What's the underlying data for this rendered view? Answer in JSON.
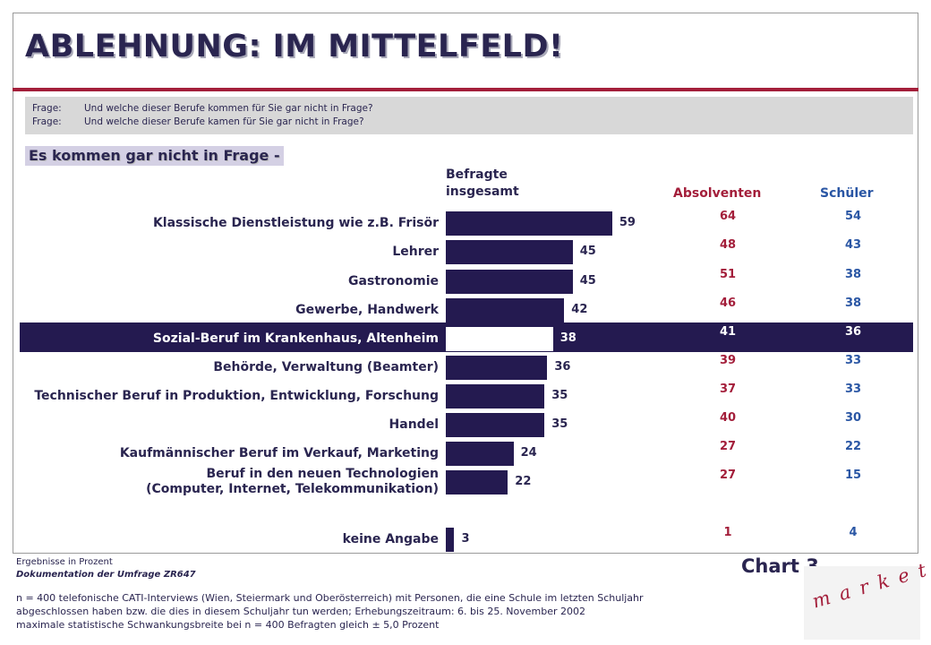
{
  "title": "ABLEHNUNG: IM MITTELFELD!",
  "questions": [
    {
      "label": "Frage:",
      "text": "Und welche dieser Berufe kommen für Sie gar nicht in Frage?"
    },
    {
      "label": "Frage:",
      "text": "Und welche dieser Berufe kamen für Sie gar nicht in Frage?"
    }
  ],
  "subheading": "Es kommen gar nicht in Frage -",
  "columns": {
    "total_line1": "Befragte",
    "total_line2": "insgesamt",
    "absolventen": "Absolventen",
    "schueler": "Schüler"
  },
  "chart_data": {
    "type": "bar",
    "orientation": "horizontal",
    "title": "Es kommen gar nicht in Frage -",
    "categories": [
      "Klassische Dienstleistung wie z.B. Frisör",
      "Lehrer",
      "Gastronomie",
      "Gewerbe, Handwerk",
      "Sozial-Beruf im Krankenhaus, Altenheim",
      "Behörde, Verwaltung (Beamter)",
      "Technischer Beruf in Produktion, Entwicklung, Forschung",
      "Handel",
      "Kaufmännischer Beruf im Verkauf, Marketing",
      "Beruf in den neuen Technologien\n(Computer, Internet, Telekommunikation)",
      "keine Angabe"
    ],
    "series": [
      {
        "name": "Befragte insgesamt",
        "values": [
          59,
          45,
          45,
          42,
          38,
          36,
          35,
          35,
          24,
          22,
          3
        ]
      },
      {
        "name": "Absolventen",
        "values": [
          64,
          48,
          51,
          46,
          41,
          39,
          37,
          40,
          27,
          27,
          1
        ]
      },
      {
        "name": "Schüler",
        "values": [
          54,
          43,
          38,
          38,
          36,
          33,
          33,
          30,
          22,
          15,
          4
        ]
      }
    ],
    "highlight_index": 4,
    "unit": "Prozent",
    "colors": {
      "bar": "#241a50",
      "absolventen": "#a31e3a",
      "schueler": "#2a56a4",
      "highlight_band": "#241a50"
    }
  },
  "footer": {
    "results_note": "Ergebnisse in Prozent",
    "documentation": "Dokumentation der Umfrage ZR647",
    "chart_label": "Chart 3",
    "fine_print": [
      "n = 400 telefonische CATI-Interviews (Wien, Steiermark und Oberösterreich) mit Personen, die eine Schule im letzten Schuljahr",
      "abgeschlossen haben bzw. die dies in diesem Schuljahr tun werden; Erhebungszeitraum: 6. bis 25. November 2002",
      "maximale statistische Schwankungsbreite bei n = 400 Befragten gleich ± 5,0 Prozent"
    ],
    "logo_text": "market",
    "logo_mark": "®"
  }
}
